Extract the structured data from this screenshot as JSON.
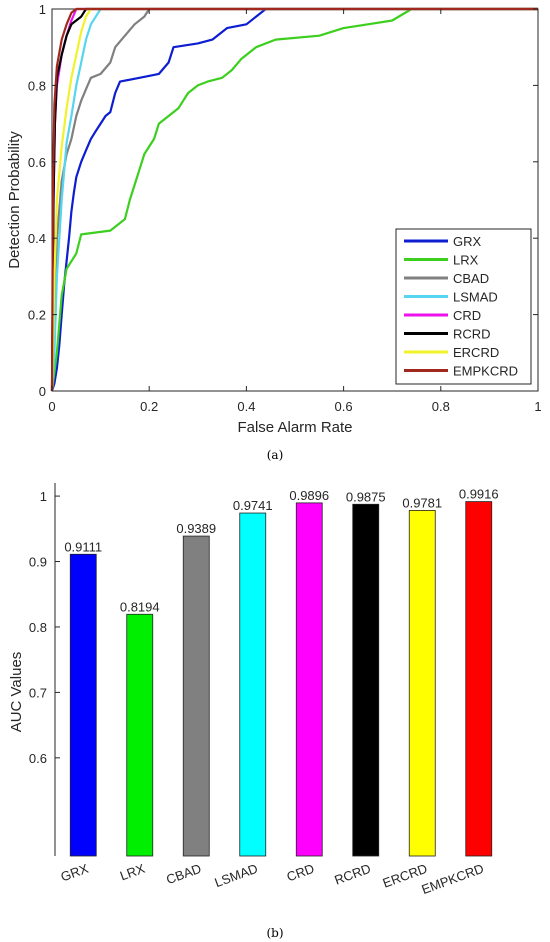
{
  "chart_data": [
    {
      "type": "line",
      "caption": "(a)",
      "xlabel": "False Alarm Rate",
      "ylabel": "Detection Probability",
      "xlim": [
        0,
        1
      ],
      "ylim": [
        0,
        1
      ],
      "xticks": [
        "0",
        "0.2",
        "0.4",
        "0.6",
        "0.8",
        "1"
      ],
      "yticks": [
        "0",
        "0.2",
        "0.4",
        "0.6",
        "0.8",
        "1"
      ],
      "grid": false,
      "legend_position": "bottom-right",
      "series": [
        {
          "name": "GRX",
          "color": "#0d1ed0",
          "points": [
            [
              0,
              0
            ],
            [
              0.005,
              0.02
            ],
            [
              0.01,
              0.06
            ],
            [
              0.015,
              0.12
            ],
            [
              0.02,
              0.2
            ],
            [
              0.025,
              0.28
            ],
            [
              0.03,
              0.34
            ],
            [
              0.035,
              0.4
            ],
            [
              0.04,
              0.47
            ],
            [
              0.045,
              0.52
            ],
            [
              0.05,
              0.56
            ],
            [
              0.06,
              0.6
            ],
            [
              0.07,
              0.63
            ],
            [
              0.08,
              0.66
            ],
            [
              0.09,
              0.68
            ],
            [
              0.1,
              0.7
            ],
            [
              0.11,
              0.72
            ],
            [
              0.12,
              0.73
            ],
            [
              0.13,
              0.78
            ],
            [
              0.14,
              0.81
            ],
            [
              0.18,
              0.82
            ],
            [
              0.22,
              0.83
            ],
            [
              0.24,
              0.86
            ],
            [
              0.25,
              0.9
            ],
            [
              0.3,
              0.91
            ],
            [
              0.33,
              0.92
            ],
            [
              0.36,
              0.95
            ],
            [
              0.4,
              0.96
            ],
            [
              0.42,
              0.98
            ],
            [
              0.44,
              1.0
            ],
            [
              1.0,
              1.0
            ]
          ]
        },
        {
          "name": "LRX",
          "color": "#3ccf1e",
          "points": [
            [
              0,
              0
            ],
            [
              0.01,
              0.1
            ],
            [
              0.02,
              0.25
            ],
            [
              0.03,
              0.32
            ],
            [
              0.05,
              0.36
            ],
            [
              0.06,
              0.41
            ],
            [
              0.12,
              0.42
            ],
            [
              0.15,
              0.45
            ],
            [
              0.16,
              0.5
            ],
            [
              0.18,
              0.58
            ],
            [
              0.19,
              0.62
            ],
            [
              0.2,
              0.64
            ],
            [
              0.21,
              0.66
            ],
            [
              0.22,
              0.7
            ],
            [
              0.24,
              0.72
            ],
            [
              0.26,
              0.74
            ],
            [
              0.27,
              0.76
            ],
            [
              0.28,
              0.78
            ],
            [
              0.3,
              0.8
            ],
            [
              0.32,
              0.81
            ],
            [
              0.35,
              0.82
            ],
            [
              0.37,
              0.84
            ],
            [
              0.39,
              0.87
            ],
            [
              0.42,
              0.9
            ],
            [
              0.46,
              0.92
            ],
            [
              0.55,
              0.93
            ],
            [
              0.6,
              0.95
            ],
            [
              0.65,
              0.96
            ],
            [
              0.7,
              0.97
            ],
            [
              0.74,
              1.0
            ],
            [
              1.0,
              1.0
            ]
          ]
        },
        {
          "name": "CBAD",
          "color": "#808080",
          "points": [
            [
              0,
              0
            ],
            [
              0.005,
              0.2
            ],
            [
              0.01,
              0.4
            ],
            [
              0.02,
              0.55
            ],
            [
              0.03,
              0.62
            ],
            [
              0.04,
              0.66
            ],
            [
              0.05,
              0.72
            ],
            [
              0.06,
              0.76
            ],
            [
              0.07,
              0.79
            ],
            [
              0.08,
              0.82
            ],
            [
              0.1,
              0.83
            ],
            [
              0.12,
              0.86
            ],
            [
              0.13,
              0.9
            ],
            [
              0.15,
              0.93
            ],
            [
              0.17,
              0.96
            ],
            [
              0.19,
              0.98
            ],
            [
              0.2,
              1.0
            ],
            [
              1.0,
              1.0
            ]
          ]
        },
        {
          "name": "LSMAD",
          "color": "#55d6ee",
          "points": [
            [
              0,
              0
            ],
            [
              0.005,
              0.1
            ],
            [
              0.01,
              0.3
            ],
            [
              0.02,
              0.5
            ],
            [
              0.03,
              0.65
            ],
            [
              0.04,
              0.72
            ],
            [
              0.05,
              0.8
            ],
            [
              0.06,
              0.86
            ],
            [
              0.07,
              0.92
            ],
            [
              0.08,
              0.96
            ],
            [
              0.1,
              1.0
            ],
            [
              1.0,
              1.0
            ]
          ]
        },
        {
          "name": "CRD",
          "color": "#ee11ee",
          "points": [
            [
              0,
              0
            ],
            [
              0.003,
              0.5
            ],
            [
              0.006,
              0.7
            ],
            [
              0.01,
              0.8
            ],
            [
              0.02,
              0.88
            ],
            [
              0.03,
              0.93
            ],
            [
              0.04,
              0.97
            ],
            [
              0.05,
              1.0
            ],
            [
              1.0,
              1.0
            ]
          ]
        },
        {
          "name": "RCRD",
          "color": "#000000",
          "points": [
            [
              0,
              0
            ],
            [
              0.003,
              0.5
            ],
            [
              0.006,
              0.7
            ],
            [
              0.01,
              0.82
            ],
            [
              0.02,
              0.88
            ],
            [
              0.03,
              0.93
            ],
            [
              0.04,
              0.96
            ],
            [
              0.06,
              0.98
            ],
            [
              0.07,
              1.0
            ],
            [
              1.0,
              1.0
            ]
          ]
        },
        {
          "name": "ERCRD",
          "color": "#f2f22a",
          "points": [
            [
              0,
              0
            ],
            [
              0.005,
              0.3
            ],
            [
              0.01,
              0.5
            ],
            [
              0.02,
              0.64
            ],
            [
              0.03,
              0.74
            ],
            [
              0.04,
              0.82
            ],
            [
              0.05,
              0.88
            ],
            [
              0.06,
              0.94
            ],
            [
              0.07,
              0.98
            ],
            [
              0.08,
              1.0
            ],
            [
              1.0,
              1.0
            ]
          ]
        },
        {
          "name": "EMPKCRD",
          "color": "#a0281e",
          "points": [
            [
              0,
              0
            ],
            [
              0.002,
              0.55
            ],
            [
              0.005,
              0.75
            ],
            [
              0.01,
              0.85
            ],
            [
              0.02,
              0.92
            ],
            [
              0.03,
              0.96
            ],
            [
              0.04,
              0.99
            ],
            [
              0.05,
              1.0
            ],
            [
              1.0,
              1.0
            ]
          ]
        }
      ]
    },
    {
      "type": "bar",
      "caption": "(b)",
      "ylabel": "AUC Values",
      "ylim": [
        0.45,
        1.02
      ],
      "yticks": [
        "0.6",
        "0.7",
        "0.8",
        "0.9",
        "1"
      ],
      "categories": [
        "GRX",
        "LRX",
        "CBAD",
        "LSMAD",
        "CRD",
        "RCRD",
        "ERCRD",
        "EMPKCRD"
      ],
      "values": [
        0.9111,
        0.8194,
        0.9389,
        0.9741,
        0.9896,
        0.9875,
        0.9781,
        0.9916
      ],
      "labels": [
        "0.9111",
        "0.8194",
        "0.9389",
        "0.9741",
        "0.9896",
        "0.9875",
        "0.9781",
        "0.9916"
      ],
      "colors": [
        "#0000ff",
        "#00ee00",
        "#808080",
        "#00ffff",
        "#ff00ff",
        "#000000",
        "#ffff00",
        "#ff0000"
      ],
      "grid": false
    }
  ]
}
